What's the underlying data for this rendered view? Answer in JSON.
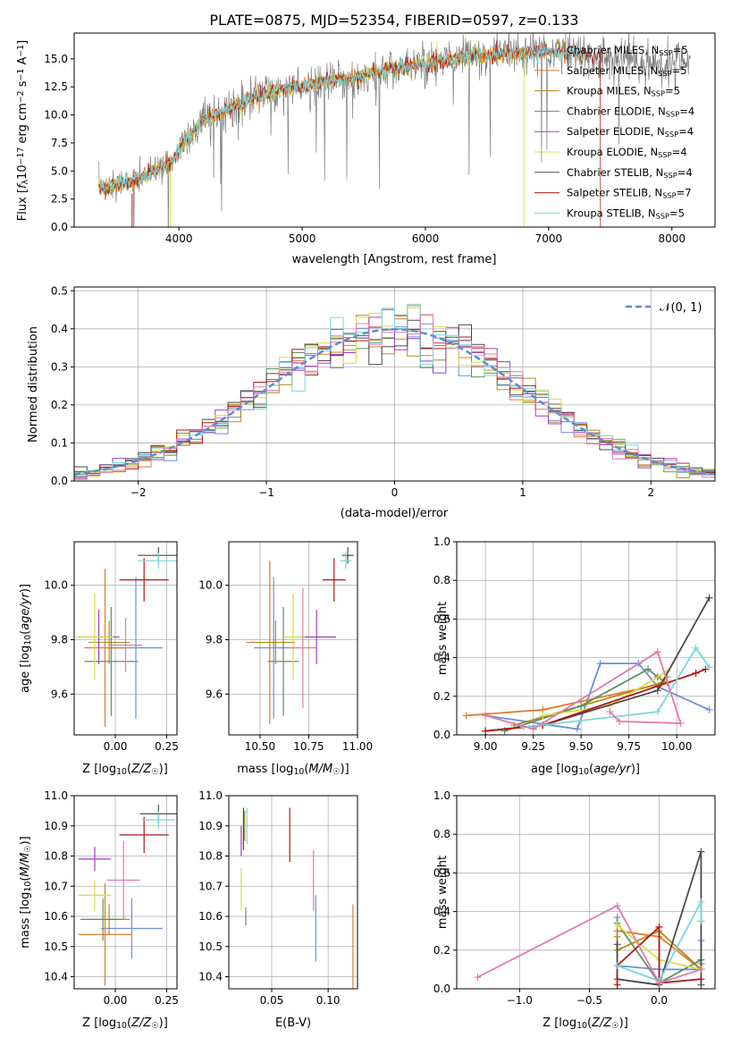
{
  "title": "PLATE=0875, MJD=52354, FIBERID=0597, z=0.133",
  "colors": {
    "chabrier_miles": "#6a8fd8",
    "salpeter_miles": "#e07b28",
    "kroupa_miles": "#b08c1a",
    "chabrier_elodie": "#5f8f5f",
    "salpeter_elodie": "#9b3fc0",
    "kroupa_elodie": "#d8e040",
    "chabrier_stelib": "#4a4a4a",
    "salpeter_stelib": "#b01818",
    "kroupa_stelib": "#7ad6dc",
    "pink": "#e07ab0",
    "gray_data": "#808080",
    "normal_curve": "#5b8ed6"
  },
  "chart_data": [
    {
      "id": "spectrum",
      "type": "line",
      "xlabel": "wavelength [Angstrom, rest frame]",
      "ylabel": "Flux [f_λ 10^-17 erg cm^-2 s^-1 A^-1]",
      "xlim": [
        3150,
        8350
      ],
      "ylim": [
        0,
        17.3
      ],
      "xticks": [
        4000,
        5000,
        6000,
        7000,
        8000
      ],
      "yticks": [
        0.0,
        2.5,
        5.0,
        7.5,
        10.0,
        12.5,
        15.0
      ],
      "legend_position": "top-right",
      "legend": [
        "Chabrier MILES, N_SSP=5",
        "Salpeter MILES, N_SSP=5",
        "Kroupa MILES, N_SSP=5",
        "Chabrier ELODIE, N_SSP=4",
        "Salpeter ELODIE, N_SSP=4",
        "Kroupa ELODIE, N_SSP=4",
        "Chabrier STELIB, N_SSP=4",
        "Salpeter STELIB, N_SSP=7",
        "Kroupa STELIB, N_SSP=5"
      ],
      "continuum_x": [
        3350,
        3500,
        3650,
        3800,
        3950,
        4000,
        4200,
        4400,
        4600,
        4800,
        5000,
        5200,
        5400,
        5600,
        5800,
        6000,
        6200,
        6400,
        6600,
        6800,
        7000,
        7200,
        7400,
        7600,
        7800,
        8000,
        8150
      ],
      "continuum_y": [
        3.5,
        3.8,
        4.2,
        5.0,
        5.8,
        7.0,
        9.5,
        10.5,
        11.5,
        12.2,
        12.6,
        13.0,
        13.3,
        13.8,
        14.2,
        14.5,
        15.0,
        15.3,
        15.4,
        15.6,
        15.6,
        15.5,
        15.2,
        14.8,
        14.5,
        14.5,
        14.7
      ]
    },
    {
      "id": "residuals",
      "type": "line",
      "xlabel": "(data-model)/error",
      "ylabel": "Normed distribution",
      "xlim": [
        -2.5,
        2.5
      ],
      "ylim": [
        0,
        0.51
      ],
      "xticks": [
        -2,
        -1,
        0,
        1,
        2
      ],
      "yticks": [
        0.0,
        0.1,
        0.2,
        0.3,
        0.4,
        0.5
      ],
      "legend": [
        "N(0,1)"
      ],
      "legend_position": "top-right"
    },
    {
      "id": "z_age",
      "type": "scatter",
      "xlabel": "Z [log10(Z/Z☉)]",
      "ylabel": "age [log10(age/yr)]",
      "xlim": [
        -0.2,
        0.3
      ],
      "ylim": [
        9.45,
        10.16
      ],
      "xticks": [
        0.0,
        0.25
      ],
      "yticks": [
        9.6,
        9.8,
        10.0
      ],
      "points": [
        {
          "c": "chabrier_miles",
          "x": 0.1,
          "y": 9.77,
          "ex": 0.13,
          "ey": 0.26
        },
        {
          "c": "salpeter_miles",
          "x": -0.05,
          "y": 9.77,
          "ex": 0.1,
          "ey": 0.29
        },
        {
          "c": "kroupa_miles",
          "x": -0.03,
          "y": 9.79,
          "ex": 0.1,
          "ey": 0.08
        },
        {
          "c": "chabrier_elodie",
          "x": -0.02,
          "y": 9.72,
          "ex": 0.13,
          "ey": 0.2
        },
        {
          "c": "salpeter_elodie",
          "x": -0.08,
          "y": 9.81,
          "ex": 0.1,
          "ey": 0.1
        },
        {
          "c": "kroupa_elodie",
          "x": -0.1,
          "y": 9.81,
          "ex": 0.09,
          "ey": 0.16
        },
        {
          "c": "chabrier_stelib",
          "x": 0.21,
          "y": 10.11,
          "ex": 0.1,
          "ey": 0.03
        },
        {
          "c": "salpeter_stelib",
          "x": 0.14,
          "y": 10.02,
          "ex": 0.12,
          "ey": 0.08
        },
        {
          "c": "kroupa_stelib",
          "x": 0.21,
          "y": 10.09,
          "ex": 0.1,
          "ey": 0.03
        },
        {
          "c": "pink",
          "x": 0.05,
          "y": 9.78,
          "ex": 0.08,
          "ey": 0.1
        }
      ]
    },
    {
      "id": "mass_age",
      "type": "scatter",
      "xlabel": "mass [log10(M/M☉)]",
      "ylabel": "",
      "xlim": [
        10.34,
        11.0
      ],
      "ylim": [
        9.45,
        10.16
      ],
      "xticks": [
        10.5,
        10.75,
        11.0
      ],
      "yticks": [
        9.6,
        9.8,
        10.0
      ],
      "points": [
        {
          "c": "chabrier_miles",
          "x": 10.57,
          "y": 9.77,
          "ex": 0.1,
          "ey": 0.26
        },
        {
          "c": "salpeter_miles",
          "x": 10.55,
          "y": 9.79,
          "ex": 0.12,
          "ey": 0.3
        },
        {
          "c": "kroupa_miles",
          "x": 10.58,
          "y": 9.79,
          "ex": 0.1,
          "ey": 0.08
        },
        {
          "c": "chabrier_elodie",
          "x": 10.62,
          "y": 9.72,
          "ex": 0.08,
          "ey": 0.2
        },
        {
          "c": "salpeter_elodie",
          "x": 10.79,
          "y": 9.81,
          "ex": 0.1,
          "ey": 0.1
        },
        {
          "c": "kroupa_elodie",
          "x": 10.67,
          "y": 9.81,
          "ex": 0.06,
          "ey": 0.16
        },
        {
          "c": "chabrier_stelib",
          "x": 10.95,
          "y": 10.11,
          "ex": 0.03,
          "ey": 0.03
        },
        {
          "c": "salpeter_stelib",
          "x": 10.88,
          "y": 10.02,
          "ex": 0.06,
          "ey": 0.08
        },
        {
          "c": "kroupa_stelib",
          "x": 10.94,
          "y": 10.09,
          "ex": 0.03,
          "ey": 0.03
        },
        {
          "c": "pink",
          "x": 10.72,
          "y": 9.77,
          "ex": 0.07,
          "ey": 0.22
        }
      ]
    },
    {
      "id": "age_weight",
      "type": "line",
      "xlabel": "age [log10(age/yr)]",
      "ylabel": "mass weight",
      "xlim": [
        8.85,
        10.2
      ],
      "ylim": [
        0,
        1.0
      ],
      "xticks": [
        9.0,
        9.25,
        9.5,
        9.75,
        10.0
      ],
      "yticks": [
        0.0,
        0.2,
        0.4,
        0.6,
        0.8,
        1.0
      ],
      "series": [
        {
          "c": "chabrier_miles",
          "x": [
            9.0,
            9.48,
            9.6,
            9.8,
            9.9,
            10.17
          ],
          "y": [
            0.1,
            0.03,
            0.37,
            0.37,
            0.25,
            0.13
          ]
        },
        {
          "c": "salpeter_miles",
          "x": [
            8.9,
            9.3,
            9.95,
            9.9
          ],
          "y": [
            0.1,
            0.13,
            0.27,
            0.3
          ]
        },
        {
          "c": "kroupa_miles",
          "x": [
            9.15,
            9.5,
            9.92,
            9.95
          ],
          "y": [
            0.05,
            0.15,
            0.27,
            0.3
          ]
        },
        {
          "c": "chabrier_elodie",
          "x": [
            9.1,
            9.5,
            9.85,
            9.9
          ],
          "y": [
            0.02,
            0.15,
            0.34,
            0.3
          ]
        },
        {
          "c": "kroupa_elodie",
          "x": [
            9.3,
            9.65,
            9.95
          ],
          "y": [
            0.1,
            0.15,
            0.33
          ]
        },
        {
          "c": "chabrier_stelib",
          "x": [
            9.0,
            9.3,
            9.9,
            10.17
          ],
          "y": [
            0.02,
            0.05,
            0.23,
            0.71
          ]
        },
        {
          "c": "salpeter_stelib",
          "x": [
            9.0,
            9.3,
            10.1,
            10.15
          ],
          "y": [
            0.02,
            0.05,
            0.32,
            0.34
          ]
        },
        {
          "c": "kroupa_stelib",
          "x": [
            9.2,
            9.9,
            10.1,
            10.17
          ],
          "y": [
            0.04,
            0.12,
            0.45,
            0.35
          ]
        },
        {
          "c": "pink",
          "x": [
            9.0,
            9.25,
            9.9,
            10.02,
            9.7,
            9.65
          ],
          "y": [
            0.1,
            0.03,
            0.43,
            0.06,
            0.07,
            0.12
          ]
        }
      ]
    },
    {
      "id": "z_mass",
      "type": "scatter",
      "xlabel": "Z [log10(Z/Z☉)]",
      "ylabel": "mass [log10(M/M☉)]",
      "xlim": [
        -0.2,
        0.3
      ],
      "ylim": [
        10.36,
        11.0
      ],
      "xticks": [
        0.0,
        0.25
      ],
      "yticks": [
        10.4,
        10.5,
        10.6,
        10.7,
        10.8,
        10.9,
        11.0
      ],
      "points": [
        {
          "c": "chabrier_miles",
          "x": 0.08,
          "y": 10.56,
          "ex": 0.15,
          "ey": 0.1
        },
        {
          "c": "salpeter_miles",
          "x": -0.05,
          "y": 10.54,
          "ex": 0.13,
          "ey": 0.17
        },
        {
          "c": "kroupa_miles",
          "x": -0.03,
          "y": 10.59,
          "ex": 0.1,
          "ey": 0.05
        },
        {
          "c": "chabrier_elodie",
          "x": -0.06,
          "y": 10.59,
          "ex": 0.11,
          "ey": 0.07
        },
        {
          "c": "salpeter_elodie",
          "x": -0.1,
          "y": 10.79,
          "ex": 0.08,
          "ey": 0.04
        },
        {
          "c": "kroupa_elodie",
          "x": -0.1,
          "y": 10.67,
          "ex": 0.08,
          "ey": 0.05
        },
        {
          "c": "chabrier_stelib",
          "x": 0.21,
          "y": 10.94,
          "ex": 0.09,
          "ey": 0.03
        },
        {
          "c": "salpeter_stelib",
          "x": 0.14,
          "y": 10.87,
          "ex": 0.12,
          "ey": 0.06
        },
        {
          "c": "kroupa_stelib",
          "x": 0.21,
          "y": 10.92,
          "ex": 0.08,
          "ey": 0.03
        },
        {
          "c": "pink",
          "x": 0.04,
          "y": 10.72,
          "ex": 0.08,
          "ey": 0.13
        }
      ]
    },
    {
      "id": "ebv_mass",
      "type": "scatter",
      "xlabel": "E(B-V)",
      "ylabel": "",
      "xlim": [
        0.012,
        0.126
      ],
      "ylim": [
        10.36,
        11.0
      ],
      "xticks": [
        0.05,
        0.1
      ],
      "yticks": [
        10.4,
        10.5,
        10.6,
        10.7,
        10.8,
        10.9,
        11.0
      ],
      "points": [
        {
          "c": "chabrier_miles",
          "x": 0.089,
          "y": 10.56,
          "ex": 0,
          "ey": 0.11
        },
        {
          "c": "salpeter_miles",
          "x": 0.122,
          "y": 10.5,
          "ex": 0,
          "ey": 0.14
        },
        {
          "c": "kroupa_miles",
          "x": 0.026,
          "y": 10.9,
          "ex": 0,
          "ey": 0.05
        },
        {
          "c": "chabrier_elodie",
          "x": 0.027,
          "y": 10.6,
          "ex": 0,
          "ey": 0.03
        },
        {
          "c": "salpeter_elodie",
          "x": 0.023,
          "y": 10.85,
          "ex": 0,
          "ey": 0.05
        },
        {
          "c": "kroupa_elodie",
          "x": 0.023,
          "y": 10.69,
          "ex": 0,
          "ey": 0.07
        },
        {
          "c": "chabrier_stelib",
          "x": 0.025,
          "y": 10.89,
          "ex": 0,
          "ey": 0.07
        },
        {
          "c": "salpeter_stelib",
          "x": 0.066,
          "y": 10.87,
          "ex": 0,
          "ey": 0.09
        },
        {
          "c": "kroupa_stelib",
          "x": 0.028,
          "y": 10.9,
          "ex": 0,
          "ey": 0.06
        },
        {
          "c": "pink",
          "x": 0.087,
          "y": 10.72,
          "ex": 0,
          "ey": 0.1
        }
      ]
    },
    {
      "id": "z_weight",
      "type": "line",
      "xlabel": "Z [log10(Z/Z☉)]",
      "ylabel": "mass weight",
      "xlim": [
        -1.45,
        0.4
      ],
      "ylim": [
        0,
        1.0
      ],
      "xticks": [
        -1.0,
        -0.5,
        0.0
      ],
      "yticks": [
        0.0,
        0.2,
        0.4,
        0.6,
        0.8,
        1.0
      ],
      "series": [
        {
          "c": "chabrier_miles",
          "x": [
            -0.3,
            -0.3,
            0.0,
            0.3,
            0.3,
            0.3
          ],
          "y": [
            0.37,
            0.12,
            0.1,
            0.1,
            0.25,
            0.13
          ]
        },
        {
          "c": "salpeter_miles",
          "x": [
            -0.3,
            0.0,
            0.3,
            0.3
          ],
          "y": [
            0.3,
            0.27,
            0.1,
            0.13
          ]
        },
        {
          "c": "kroupa_miles",
          "x": [
            -0.3,
            -0.3,
            0.0,
            0.3
          ],
          "y": [
            0.27,
            0.2,
            0.3,
            0.1
          ]
        },
        {
          "c": "chabrier_elodie",
          "x": [
            -0.3,
            0.0,
            0.3
          ],
          "y": [
            0.34,
            0.03,
            0.15
          ]
        },
        {
          "c": "kroupa_elodie",
          "x": [
            -0.3,
            0.0,
            0.3
          ],
          "y": [
            0.33,
            0.15,
            0.1
          ]
        },
        {
          "c": "chabrier_stelib",
          "x": [
            -0.3,
            -0.3,
            0.0,
            0.3,
            0.3
          ],
          "y": [
            0.23,
            0.05,
            0.02,
            0.71,
            0.02
          ]
        },
        {
          "c": "salpeter_stelib",
          "x": [
            -0.3,
            -0.3,
            0.0,
            0.0,
            0.3
          ],
          "y": [
            0.02,
            0.12,
            0.32,
            0.03,
            0.05
          ]
        },
        {
          "c": "kroupa_stelib",
          "x": [
            -0.3,
            0.0,
            0.3,
            0.3
          ],
          "y": [
            0.12,
            0.04,
            0.45,
            0.35
          ]
        },
        {
          "c": "pink",
          "x": [
            -1.3,
            -0.3,
            0.0,
            0.3
          ],
          "y": [
            0.06,
            0.43,
            0.03,
            0.1
          ]
        }
      ]
    }
  ]
}
